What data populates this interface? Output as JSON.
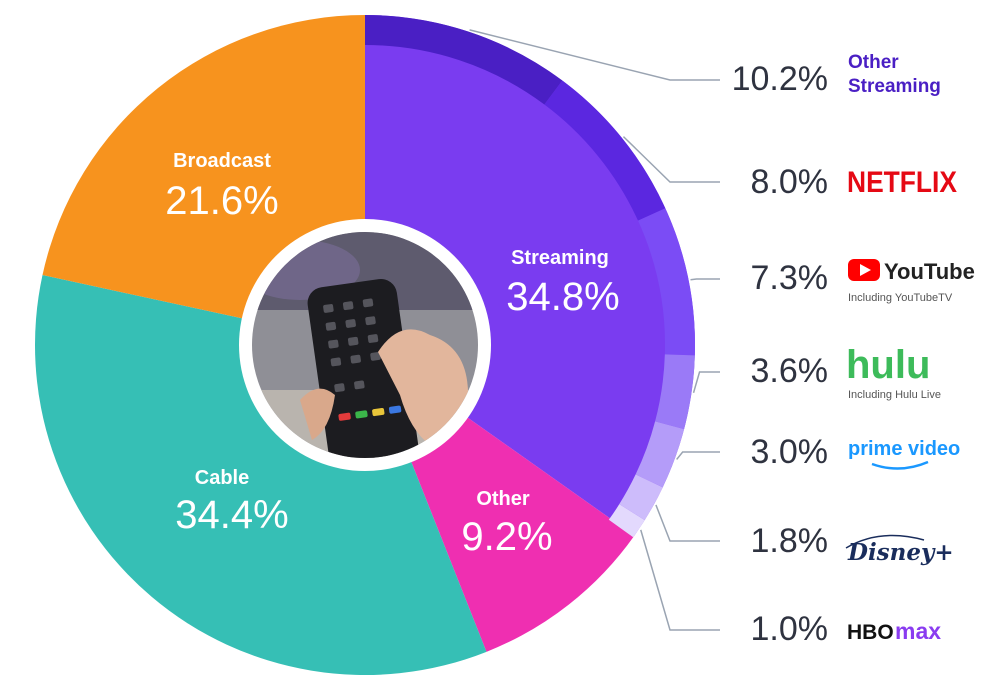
{
  "chart_data": {
    "type": "pie",
    "segments": [
      {
        "label": "Streaming",
        "value_label": "34.8%",
        "value": 34.8,
        "color": "#7a3cf0"
      },
      {
        "label": "Other",
        "value_label": "9.2%",
        "value": 9.2,
        "color": "#ef2fb1"
      },
      {
        "label": "Cable",
        "value_label": "34.4%",
        "value": 34.4,
        "color": "#36bfb5"
      },
      {
        "label": "Broadcast",
        "value_label": "21.6%",
        "value": 21.6,
        "color": "#f7931e"
      }
    ],
    "streaming_breakdown": [
      {
        "name": "Other Streaming",
        "value_label": "10.2%",
        "value": 10.2,
        "color": "#4a1fc4",
        "logo": "other-streaming-text"
      },
      {
        "name": "NETFLIX",
        "value_label": "8.0%",
        "value": 8.0,
        "color": "#5b27e0",
        "logo": "netflix-logo"
      },
      {
        "name": "YouTube",
        "sublabel": "Including YouTubeTV",
        "value_label": "7.3%",
        "value": 7.3,
        "color": "#7b4cf5",
        "logo": "youtube-logo"
      },
      {
        "name": "hulu",
        "sublabel": "Including Hulu Live",
        "value_label": "3.6%",
        "value": 3.6,
        "color": "#9a7af7",
        "logo": "hulu-logo"
      },
      {
        "name": "prime video",
        "value_label": "3.0%",
        "value": 3.0,
        "color": "#b49cf9",
        "logo": "prime-video-logo"
      },
      {
        "name": "Disney+",
        "value_label": "1.8%",
        "value": 1.8,
        "color": "#cdbcfb",
        "logo": "disney-plus-logo"
      },
      {
        "name": "HBO max",
        "value_label": "1.0%",
        "value": 1.0,
        "color": "#e3d9fd",
        "logo": "hbo-max-logo"
      }
    ]
  },
  "logos": {
    "other_streaming_line1": "Other",
    "other_streaming_line2": "Streaming",
    "netflix": "NETFLIX",
    "youtube": "YouTube",
    "youtube_sub": "Including YouTubeTV",
    "hulu": "hulu",
    "hulu_sub": "Including Hulu Live",
    "prime": "prime video",
    "disney": "Disney+",
    "hbo": "HBO",
    "max": "max"
  },
  "colors": {
    "netflix": "#e50914",
    "youtube_red": "#ff0000",
    "hulu": "#3dbb5a",
    "prime": "#1a98ff",
    "disney": "#1a2d5c",
    "hbo_max": "#8a3cf0",
    "leader_line": "#9aa4b2"
  }
}
